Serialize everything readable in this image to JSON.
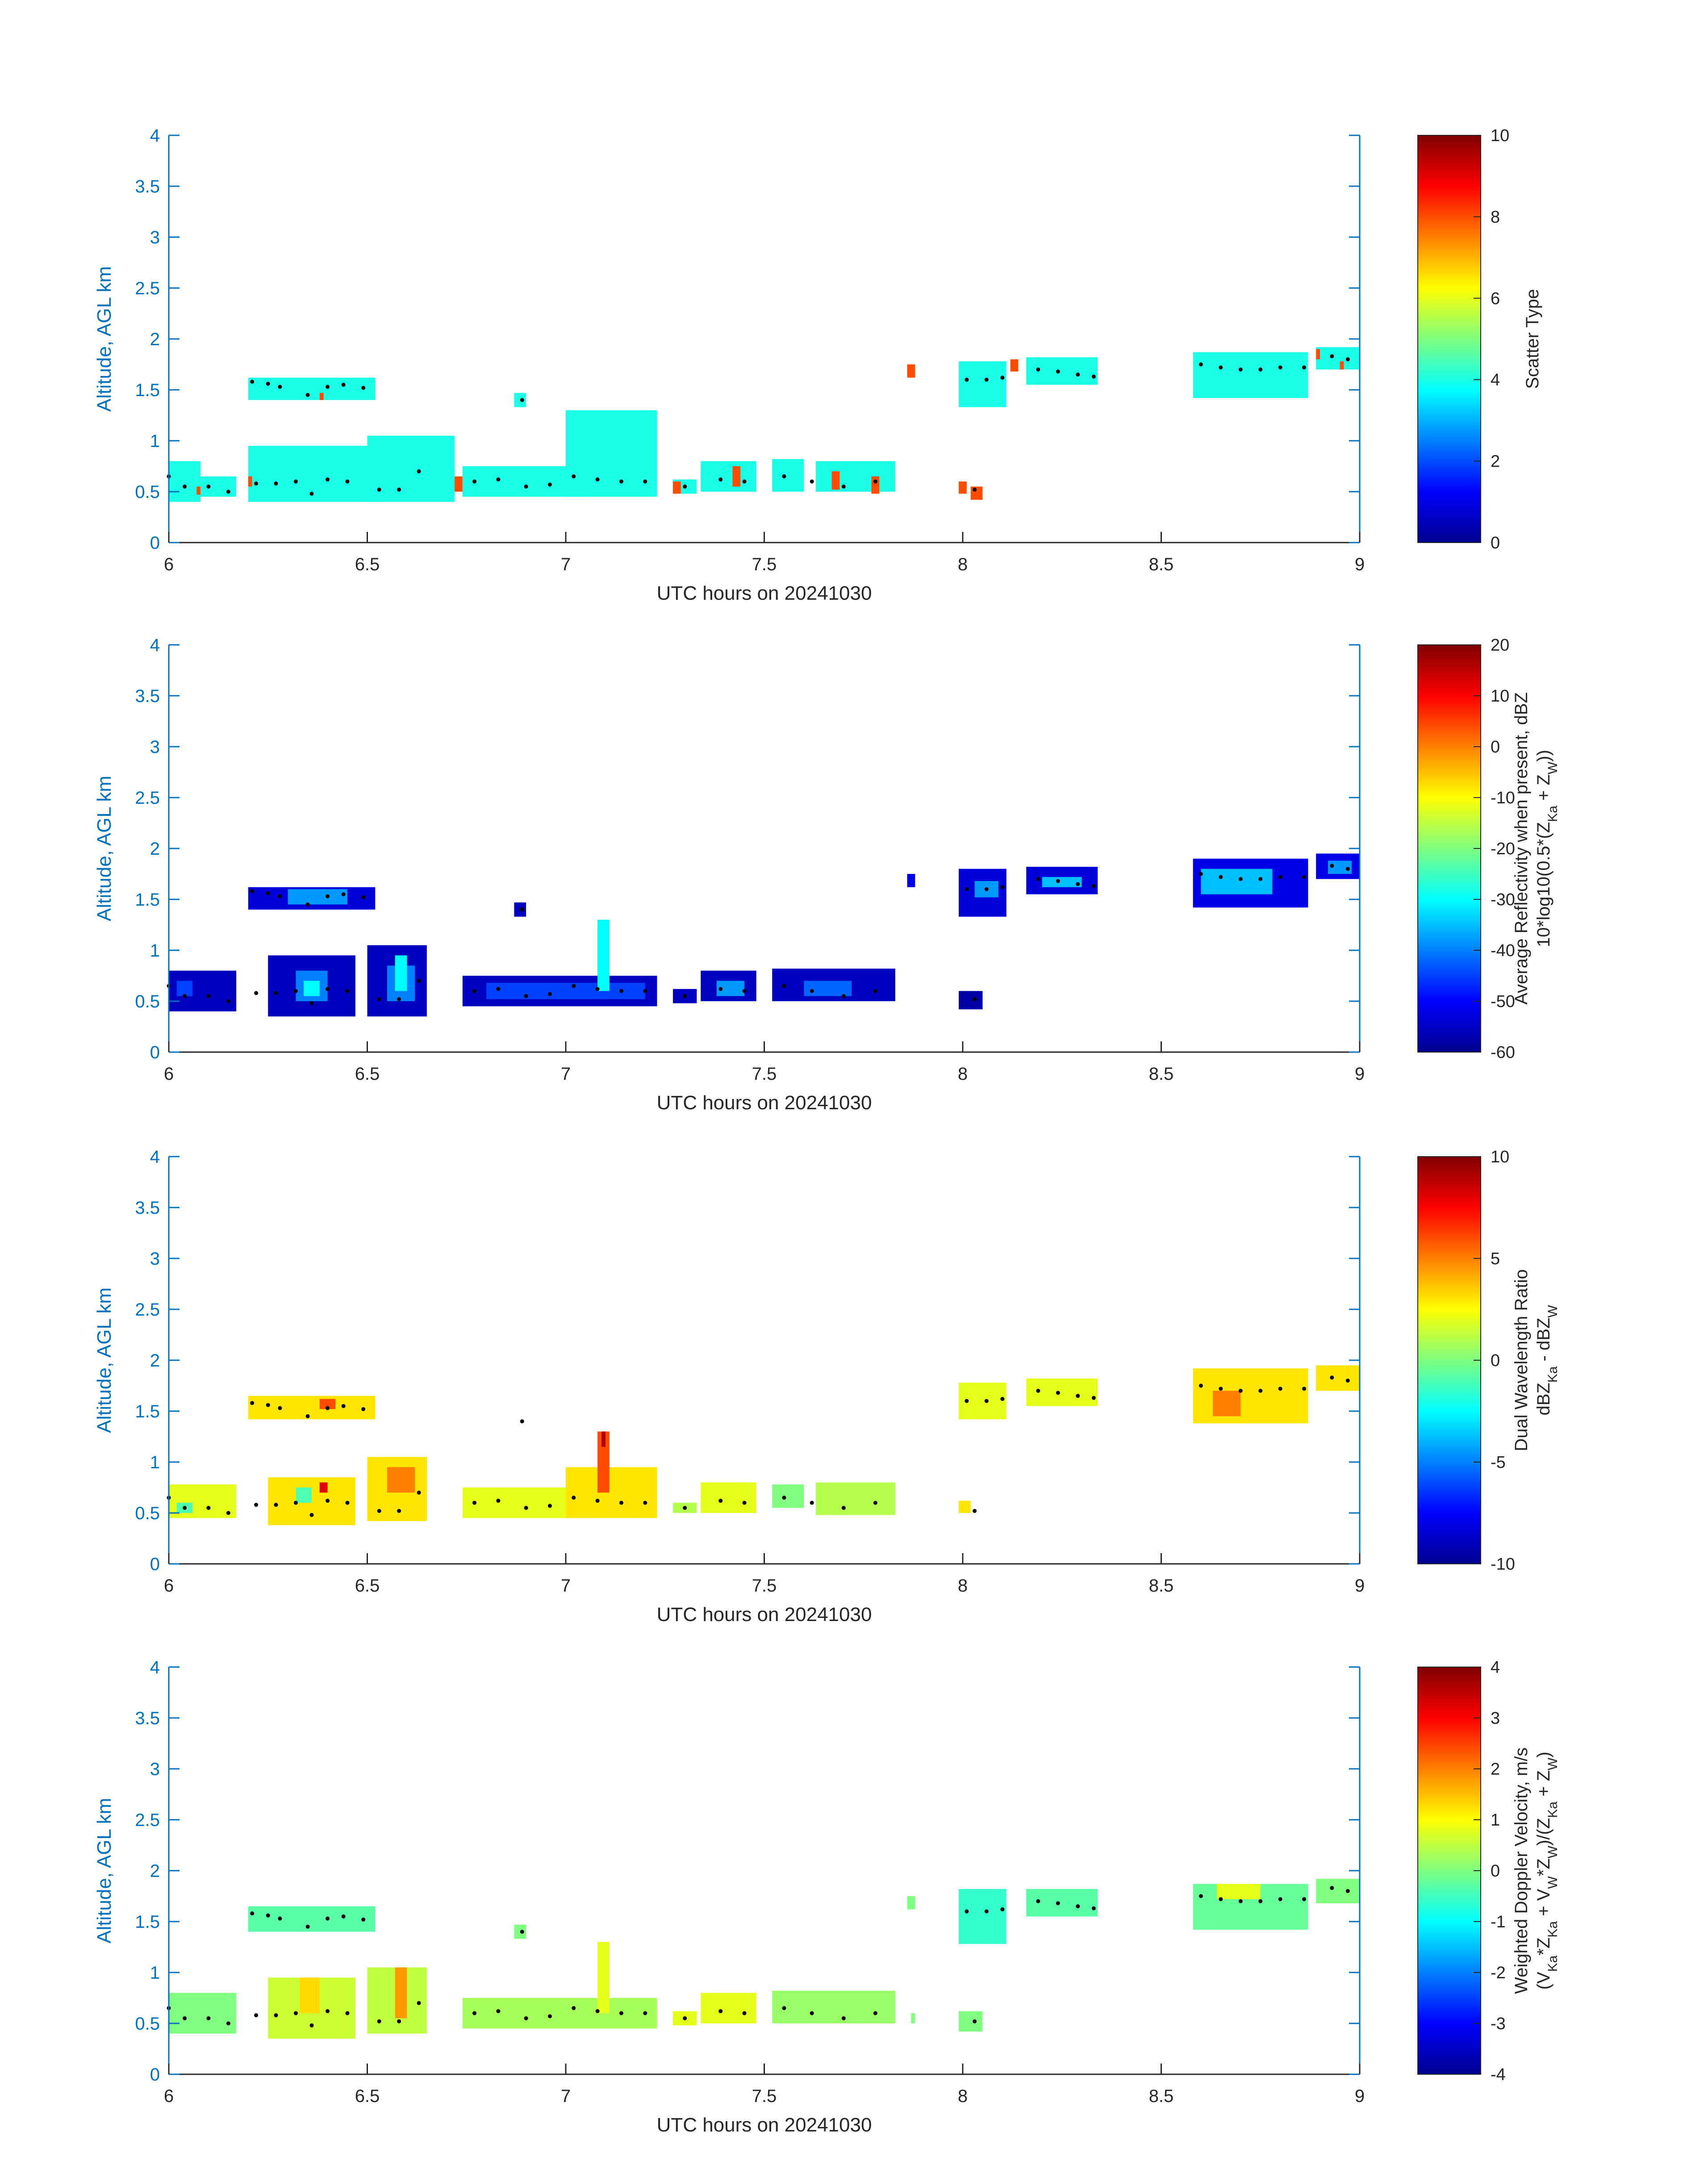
{
  "colormap": "jet",
  "colors": {
    "axis_left": "#0072BD",
    "axis_other": "#262626",
    "centroid_dots": "#000000",
    "background": "#ffffff"
  },
  "chart_data": [
    {
      "type": "heatmap",
      "xlabel": "UTC hours on 20241030",
      "ylabel": "Altitude, AGL km",
      "xlim": [
        6,
        9
      ],
      "ylim": [
        0,
        4
      ],
      "xticks": [
        "6",
        "6.5",
        "7",
        "7.5",
        "8",
        "8.5",
        "9"
      ],
      "yticks": [
        "0",
        "0.5",
        "1",
        "1.5",
        "2",
        "2.5",
        "3",
        "3.5",
        "4"
      ],
      "colorbar": {
        "label_lines": [
          "Scatter Type"
        ],
        "range": [
          0,
          10
        ],
        "ticks": [
          "0",
          "2",
          "4",
          "6",
          "8",
          "10"
        ],
        "tick_values": [
          0,
          2,
          4,
          6,
          8,
          10
        ]
      },
      "cells": [
        {
          "x0": 6.0,
          "x1": 6.08,
          "y0": 0.4,
          "y1": 0.8,
          "value": 4
        },
        {
          "x0": 6.08,
          "x1": 6.17,
          "y0": 0.45,
          "y1": 0.65,
          "value": 4
        },
        {
          "x0": 6.07,
          "x1": 6.08,
          "y0": 0.47,
          "y1": 0.55,
          "value": 8
        },
        {
          "x0": 6.2,
          "x1": 6.52,
          "y0": 0.4,
          "y1": 0.95,
          "value": 4
        },
        {
          "x0": 6.2,
          "x1": 6.21,
          "y0": 0.55,
          "y1": 0.65,
          "value": 8
        },
        {
          "x0": 6.5,
          "x1": 6.72,
          "y0": 0.4,
          "y1": 1.05,
          "value": 4
        },
        {
          "x0": 6.72,
          "x1": 6.74,
          "y0": 0.5,
          "y1": 0.65,
          "value": 8
        },
        {
          "x0": 6.74,
          "x1": 7.05,
          "y0": 0.45,
          "y1": 0.75,
          "value": 4
        },
        {
          "x0": 7.0,
          "x1": 7.23,
          "y0": 0.45,
          "y1": 1.3,
          "value": 4
        },
        {
          "x0": 7.27,
          "x1": 7.33,
          "y0": 0.48,
          "y1": 0.62,
          "value": 4
        },
        {
          "x0": 7.27,
          "x1": 7.29,
          "y0": 0.48,
          "y1": 0.6,
          "value": 8
        },
        {
          "x0": 7.34,
          "x1": 7.48,
          "y0": 0.5,
          "y1": 0.8,
          "value": 4
        },
        {
          "x0": 7.42,
          "x1": 7.44,
          "y0": 0.55,
          "y1": 0.75,
          "value": 8
        },
        {
          "x0": 7.52,
          "x1": 7.6,
          "y0": 0.5,
          "y1": 0.82,
          "value": 4
        },
        {
          "x0": 7.63,
          "x1": 7.74,
          "y0": 0.5,
          "y1": 0.8,
          "value": 4
        },
        {
          "x0": 7.67,
          "x1": 7.69,
          "y0": 0.52,
          "y1": 0.7,
          "value": 8
        },
        {
          "x0": 7.74,
          "x1": 7.83,
          "y0": 0.5,
          "y1": 0.8,
          "value": 4
        },
        {
          "x0": 7.77,
          "x1": 7.79,
          "y0": 0.48,
          "y1": 0.65,
          "value": 8
        },
        {
          "x0": 7.99,
          "x1": 8.01,
          "y0": 0.48,
          "y1": 0.6,
          "value": 8
        },
        {
          "x0": 8.02,
          "x1": 8.05,
          "y0": 0.42,
          "y1": 0.55,
          "value": 8
        },
        {
          "x0": 6.2,
          "x1": 6.52,
          "y0": 1.4,
          "y1": 1.62,
          "value": 4
        },
        {
          "x0": 6.38,
          "x1": 6.39,
          "y0": 1.4,
          "y1": 1.47,
          "value": 8
        },
        {
          "x0": 6.87,
          "x1": 6.9,
          "y0": 1.33,
          "y1": 1.47,
          "value": 4
        },
        {
          "x0": 7.86,
          "x1": 7.88,
          "y0": 1.62,
          "y1": 1.75,
          "value": 8
        },
        {
          "x0": 7.99,
          "x1": 8.11,
          "y0": 1.33,
          "y1": 1.78,
          "value": 4
        },
        {
          "x0": 8.12,
          "x1": 8.14,
          "y0": 1.68,
          "y1": 1.8,
          "value": 8
        },
        {
          "x0": 8.16,
          "x1": 8.34,
          "y0": 1.55,
          "y1": 1.82,
          "value": 4
        },
        {
          "x0": 8.58,
          "x1": 8.87,
          "y0": 1.42,
          "y1": 1.87,
          "value": 4
        },
        {
          "x0": 8.89,
          "x1": 9.0,
          "y0": 1.7,
          "y1": 1.92,
          "value": 4
        },
        {
          "x0": 8.89,
          "x1": 8.9,
          "y0": 1.8,
          "y1": 1.9,
          "value": 8
        },
        {
          "x0": 8.95,
          "x1": 8.96,
          "y0": 1.7,
          "y1": 1.78,
          "value": 8
        }
      ]
    },
    {
      "type": "heatmap",
      "xlabel": "UTC hours on 20241030",
      "ylabel": "Altitude, AGL km",
      "xlim": [
        6,
        9
      ],
      "ylim": [
        0,
        4
      ],
      "xticks": [
        "6",
        "6.5",
        "7",
        "7.5",
        "8",
        "8.5",
        "9"
      ],
      "yticks": [
        "0",
        "0.5",
        "1",
        "1.5",
        "2",
        "2.5",
        "3",
        "3.5",
        "4"
      ],
      "colorbar": {
        "label_lines": [
          "Average Reflectivity when present, dBZ",
          "10*log10(0.5*(Z_Ka + Z_W))"
        ],
        "range": [
          -60,
          20
        ],
        "ticks": [
          "-60",
          "-50",
          "-40",
          "-30",
          "-20",
          "-10",
          "0",
          "10",
          "20"
        ],
        "tick_values": [
          -60,
          -50,
          -40,
          -30,
          -20,
          -10,
          0,
          10,
          20
        ]
      },
      "cells": [
        {
          "x0": 6.0,
          "x1": 6.17,
          "y0": 0.4,
          "y1": 0.8,
          "value": -55
        },
        {
          "x0": 6.02,
          "x1": 6.06,
          "y0": 0.55,
          "y1": 0.7,
          "value": -45
        },
        {
          "x0": 6.25,
          "x1": 6.47,
          "y0": 0.35,
          "y1": 0.95,
          "value": -55
        },
        {
          "x0": 6.32,
          "x1": 6.4,
          "y0": 0.5,
          "y1": 0.8,
          "value": -40
        },
        {
          "x0": 6.34,
          "x1": 6.38,
          "y0": 0.55,
          "y1": 0.7,
          "value": -30
        },
        {
          "x0": 6.5,
          "x1": 6.65,
          "y0": 0.35,
          "y1": 1.05,
          "value": -55
        },
        {
          "x0": 6.55,
          "x1": 6.62,
          "y0": 0.5,
          "y1": 0.85,
          "value": -40
        },
        {
          "x0": 6.57,
          "x1": 6.6,
          "y0": 0.6,
          "y1": 0.95,
          "value": -30
        },
        {
          "x0": 6.74,
          "x1": 7.23,
          "y0": 0.45,
          "y1": 0.75,
          "value": -55
        },
        {
          "x0": 6.8,
          "x1": 7.2,
          "y0": 0.52,
          "y1": 0.68,
          "value": -45
        },
        {
          "x0": 7.08,
          "x1": 7.11,
          "y0": 0.6,
          "y1": 1.3,
          "value": -30
        },
        {
          "x0": 7.27,
          "x1": 7.33,
          "y0": 0.48,
          "y1": 0.62,
          "value": -55
        },
        {
          "x0": 7.34,
          "x1": 7.48,
          "y0": 0.5,
          "y1": 0.8,
          "value": -55
        },
        {
          "x0": 7.38,
          "x1": 7.45,
          "y0": 0.55,
          "y1": 0.7,
          "value": -38
        },
        {
          "x0": 7.52,
          "x1": 7.83,
          "y0": 0.5,
          "y1": 0.82,
          "value": -55
        },
        {
          "x0": 7.6,
          "x1": 7.72,
          "y0": 0.55,
          "y1": 0.7,
          "value": -42
        },
        {
          "x0": 7.99,
          "x1": 8.05,
          "y0": 0.42,
          "y1": 0.6,
          "value": -57
        },
        {
          "x0": 6.2,
          "x1": 6.52,
          "y0": 1.4,
          "y1": 1.62,
          "value": -53
        },
        {
          "x0": 6.3,
          "x1": 6.45,
          "y0": 1.45,
          "y1": 1.6,
          "value": -38
        },
        {
          "x0": 6.87,
          "x1": 6.9,
          "y0": 1.33,
          "y1": 1.47,
          "value": -55
        },
        {
          "x0": 7.86,
          "x1": 7.88,
          "y0": 1.62,
          "y1": 1.75,
          "value": -52
        },
        {
          "x0": 7.99,
          "x1": 8.11,
          "y0": 1.33,
          "y1": 1.8,
          "value": -53
        },
        {
          "x0": 8.03,
          "x1": 8.09,
          "y0": 1.52,
          "y1": 1.68,
          "value": -38
        },
        {
          "x0": 8.16,
          "x1": 8.34,
          "y0": 1.55,
          "y1": 1.82,
          "value": -53
        },
        {
          "x0": 8.2,
          "x1": 8.3,
          "y0": 1.62,
          "y1": 1.72,
          "value": -35
        },
        {
          "x0": 8.58,
          "x1": 8.87,
          "y0": 1.42,
          "y1": 1.9,
          "value": -52
        },
        {
          "x0": 8.6,
          "x1": 8.78,
          "y0": 1.55,
          "y1": 1.8,
          "value": -35
        },
        {
          "x0": 8.89,
          "x1": 9.0,
          "y0": 1.7,
          "y1": 1.95,
          "value": -52
        },
        {
          "x0": 8.92,
          "x1": 8.98,
          "y0": 1.75,
          "y1": 1.88,
          "value": -38
        }
      ]
    },
    {
      "type": "heatmap",
      "xlabel": "UTC hours on 20241030",
      "ylabel": "Altitude, AGL km",
      "xlim": [
        6,
        9
      ],
      "ylim": [
        0,
        4
      ],
      "xticks": [
        "6",
        "6.5",
        "7",
        "7.5",
        "8",
        "8.5",
        "9"
      ],
      "yticks": [
        "0",
        "0.5",
        "1",
        "1.5",
        "2",
        "2.5",
        "3",
        "3.5",
        "4"
      ],
      "colorbar": {
        "label_lines": [
          "Dual Wavelength Ratio",
          "dBZ_Ka - dBZ_W"
        ],
        "range": [
          -10,
          10
        ],
        "ticks": [
          "-10",
          "-5",
          "0",
          "5",
          "10"
        ],
        "tick_values": [
          -10,
          -5,
          0,
          5,
          10
        ]
      },
      "cells": [
        {
          "x0": 6.0,
          "x1": 6.17,
          "y0": 0.45,
          "y1": 0.78,
          "value": 2
        },
        {
          "x0": 6.02,
          "x1": 6.06,
          "y0": 0.5,
          "y1": 0.6,
          "value": -1
        },
        {
          "x0": 6.25,
          "x1": 6.47,
          "y0": 0.38,
          "y1": 0.85,
          "value": 3
        },
        {
          "x0": 6.32,
          "x1": 6.36,
          "y0": 0.6,
          "y1": 0.75,
          "value": -1
        },
        {
          "x0": 6.38,
          "x1": 6.4,
          "y0": 0.7,
          "y1": 0.8,
          "value": 8
        },
        {
          "x0": 6.5,
          "x1": 6.65,
          "y0": 0.42,
          "y1": 1.05,
          "value": 3
        },
        {
          "x0": 6.55,
          "x1": 6.62,
          "y0": 0.7,
          "y1": 0.95,
          "value": 5
        },
        {
          "x0": 6.74,
          "x1": 7.05,
          "y0": 0.45,
          "y1": 0.75,
          "value": 2
        },
        {
          "x0": 7.0,
          "x1": 7.23,
          "y0": 0.45,
          "y1": 0.95,
          "value": 3
        },
        {
          "x0": 7.08,
          "x1": 7.11,
          "y0": 0.7,
          "y1": 1.3,
          "value": 6
        },
        {
          "x0": 7.09,
          "x1": 7.1,
          "y0": 1.15,
          "y1": 1.3,
          "value": 9
        },
        {
          "x0": 7.27,
          "x1": 7.33,
          "y0": 0.5,
          "y1": 0.6,
          "value": 1
        },
        {
          "x0": 7.34,
          "x1": 7.48,
          "y0": 0.5,
          "y1": 0.8,
          "value": 2
        },
        {
          "x0": 7.52,
          "x1": 7.6,
          "y0": 0.55,
          "y1": 0.78,
          "value": 0
        },
        {
          "x0": 7.63,
          "x1": 7.83,
          "y0": 0.48,
          "y1": 0.8,
          "value": 1
        },
        {
          "x0": 7.99,
          "x1": 8.02,
          "y0": 0.5,
          "y1": 0.62,
          "value": 3
        },
        {
          "x0": 6.2,
          "x1": 6.52,
          "y0": 1.42,
          "y1": 1.65,
          "value": 3
        },
        {
          "x0": 6.38,
          "x1": 6.42,
          "y0": 1.52,
          "y1": 1.62,
          "value": 6
        },
        {
          "x0": 7.99,
          "x1": 8.11,
          "y0": 1.42,
          "y1": 1.78,
          "value": 2
        },
        {
          "x0": 8.16,
          "x1": 8.34,
          "y0": 1.55,
          "y1": 1.82,
          "value": 2
        },
        {
          "x0": 8.58,
          "x1": 8.87,
          "y0": 1.38,
          "y1": 1.92,
          "value": 3
        },
        {
          "x0": 8.63,
          "x1": 8.7,
          "y0": 1.45,
          "y1": 1.7,
          "value": 5
        },
        {
          "x0": 8.89,
          "x1": 9.0,
          "y0": 1.7,
          "y1": 1.95,
          "value": 3
        }
      ]
    },
    {
      "type": "heatmap",
      "xlabel": "UTC hours on 20241030",
      "ylabel": "Altitude, AGL km",
      "xlim": [
        6,
        9
      ],
      "ylim": [
        0,
        4
      ],
      "xticks": [
        "6",
        "6.5",
        "7",
        "7.5",
        "8",
        "8.5",
        "9"
      ],
      "yticks": [
        "0",
        "0.5",
        "1",
        "1.5",
        "2",
        "2.5",
        "3",
        "3.5",
        "4"
      ],
      "colorbar": {
        "label_lines": [
          "Weighted Doppler Velocity, m/s",
          "(V_Ka*Z_Ka + V_W*Z_W)/(Z_Ka + Z_W)"
        ],
        "range": [
          -4,
          4
        ],
        "ticks": [
          "-4",
          "-3",
          "-2",
          "-1",
          "0",
          "1",
          "2",
          "3",
          "4"
        ],
        "tick_values": [
          -4,
          -3,
          -2,
          -1,
          0,
          1,
          2,
          3,
          4
        ]
      },
      "cells": [
        {
          "x0": 6.0,
          "x1": 6.17,
          "y0": 0.4,
          "y1": 0.8,
          "value": 0
        },
        {
          "x0": 6.25,
          "x1": 6.47,
          "y0": 0.35,
          "y1": 0.95,
          "value": 0.6
        },
        {
          "x0": 6.33,
          "x1": 6.38,
          "y0": 0.6,
          "y1": 0.95,
          "value": 1.3
        },
        {
          "x0": 6.5,
          "x1": 6.65,
          "y0": 0.4,
          "y1": 1.05,
          "value": 0.5
        },
        {
          "x0": 6.57,
          "x1": 6.6,
          "y0": 0.55,
          "y1": 1.05,
          "value": 1.8
        },
        {
          "x0": 6.74,
          "x1": 7.23,
          "y0": 0.45,
          "y1": 0.75,
          "value": 0.3
        },
        {
          "x0": 7.08,
          "x1": 7.11,
          "y0": 0.6,
          "y1": 1.3,
          "value": 0.8
        },
        {
          "x0": 7.27,
          "x1": 7.33,
          "y0": 0.48,
          "y1": 0.62,
          "value": 0.8
        },
        {
          "x0": 7.34,
          "x1": 7.48,
          "y0": 0.5,
          "y1": 0.8,
          "value": 0.8
        },
        {
          "x0": 7.52,
          "x1": 7.83,
          "y0": 0.5,
          "y1": 0.82,
          "value": 0.2
        },
        {
          "x0": 7.87,
          "x1": 7.88,
          "y0": 0.5,
          "y1": 0.6,
          "value": 0
        },
        {
          "x0": 7.99,
          "x1": 8.05,
          "y0": 0.42,
          "y1": 0.62,
          "value": 0
        },
        {
          "x0": 6.2,
          "x1": 6.52,
          "y0": 1.4,
          "y1": 1.65,
          "value": -0.3
        },
        {
          "x0": 6.87,
          "x1": 6.9,
          "y0": 1.33,
          "y1": 1.47,
          "value": 0
        },
        {
          "x0": 7.86,
          "x1": 7.88,
          "y0": 1.62,
          "y1": 1.75,
          "value": 0
        },
        {
          "x0": 7.99,
          "x1": 8.11,
          "y0": 1.28,
          "y1": 1.82,
          "value": -0.6
        },
        {
          "x0": 8.16,
          "x1": 8.34,
          "y0": 1.55,
          "y1": 1.82,
          "value": -0.3
        },
        {
          "x0": 8.58,
          "x1": 8.87,
          "y0": 1.42,
          "y1": 1.87,
          "value": -0.2
        },
        {
          "x0": 8.64,
          "x1": 8.75,
          "y0": 1.72,
          "y1": 1.87,
          "value": 0.8
        },
        {
          "x0": 8.89,
          "x1": 9.0,
          "y0": 1.68,
          "y1": 1.92,
          "value": 0
        }
      ]
    }
  ],
  "centroids": {
    "low": [
      [
        6.0,
        0.65
      ],
      [
        6.04,
        0.55
      ],
      [
        6.1,
        0.55
      ],
      [
        6.15,
        0.5
      ],
      [
        6.22,
        0.58
      ],
      [
        6.27,
        0.58
      ],
      [
        6.32,
        0.6
      ],
      [
        6.36,
        0.48
      ],
      [
        6.4,
        0.62
      ],
      [
        6.45,
        0.6
      ],
      [
        6.53,
        0.52
      ],
      [
        6.58,
        0.52
      ],
      [
        6.63,
        0.7
      ],
      [
        6.77,
        0.6
      ],
      [
        6.83,
        0.62
      ],
      [
        6.9,
        0.55
      ],
      [
        6.96,
        0.57
      ],
      [
        7.02,
        0.65
      ],
      [
        7.08,
        0.62
      ],
      [
        7.14,
        0.6
      ],
      [
        7.2,
        0.6
      ],
      [
        7.3,
        0.55
      ],
      [
        7.39,
        0.62
      ],
      [
        7.45,
        0.6
      ],
      [
        7.55,
        0.65
      ],
      [
        7.62,
        0.6
      ],
      [
        7.7,
        0.55
      ],
      [
        7.78,
        0.6
      ],
      [
        8.03,
        0.52
      ]
    ],
    "high": [
      [
        6.21,
        1.58
      ],
      [
        6.25,
        1.56
      ],
      [
        6.28,
        1.53
      ],
      [
        6.35,
        1.45
      ],
      [
        6.4,
        1.53
      ],
      [
        6.44,
        1.55
      ],
      [
        6.49,
        1.52
      ],
      [
        6.89,
        1.4
      ],
      [
        8.01,
        1.6
      ],
      [
        8.06,
        1.6
      ],
      [
        8.1,
        1.62
      ],
      [
        8.19,
        1.7
      ],
      [
        8.24,
        1.68
      ],
      [
        8.29,
        1.65
      ],
      [
        8.33,
        1.63
      ],
      [
        8.6,
        1.75
      ],
      [
        8.65,
        1.72
      ],
      [
        8.7,
        1.7
      ],
      [
        8.75,
        1.7
      ],
      [
        8.8,
        1.72
      ],
      [
        8.86,
        1.72
      ],
      [
        8.93,
        1.83
      ],
      [
        8.97,
        1.8
      ]
    ]
  }
}
